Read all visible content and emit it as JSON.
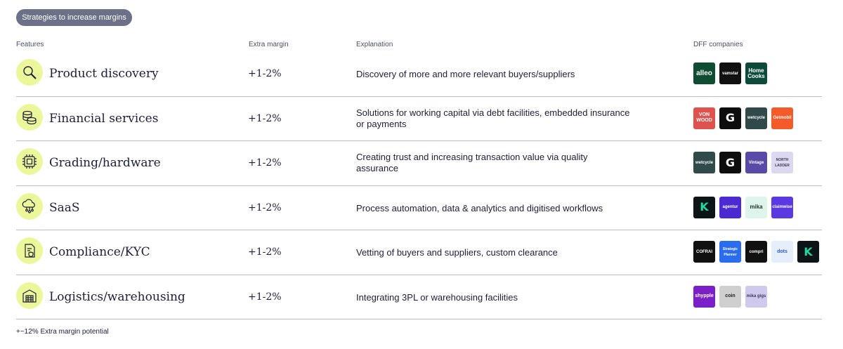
{
  "pill": "Strategies to increase margins",
  "headers": {
    "features": "Features",
    "extra_margin": "Extra margin",
    "explanation": "Explanation",
    "companies": "DFF companies"
  },
  "rows": [
    {
      "feature": "Product discovery",
      "margin": "+1-2%",
      "explanation": "Discovery of more and more relevant buyers/suppliers",
      "icon": "magnifier-icon",
      "logos": [
        {
          "text": "alleo",
          "bg": "#0f4d33",
          "fg": "#ffffff"
        },
        {
          "text": "vamstar",
          "bg": "#111111",
          "fg": "#ffffff"
        },
        {
          "text": "Home Cooks",
          "bg": "#0c4a3a",
          "fg": "#ffffff"
        }
      ]
    },
    {
      "feature": "Financial services",
      "margin": "+1-2%",
      "explanation": "Solutions for working capital via debt facilities, embedded insurance or payments",
      "icon": "coins-icon",
      "logos": [
        {
          "text": "VON WOOD",
          "bg": "#e0524d",
          "fg": "#ffffff"
        },
        {
          "text": "G",
          "bg": "#0d0d0d",
          "fg": "#ffffff"
        },
        {
          "text": "wetcycle",
          "bg": "#2f4a48",
          "fg": "#ffffff"
        },
        {
          "text": "Getmobil",
          "bg": "#f45a2a",
          "fg": "#ffffff"
        }
      ]
    },
    {
      "feature": "Grading/hardware",
      "margin": "+1-2%",
      "explanation": "Creating trust and increasing transaction value via quality assurance",
      "icon": "chip-icon",
      "logos": [
        {
          "text": "wetcycle",
          "bg": "#2f4a48",
          "fg": "#ffffff"
        },
        {
          "text": "G",
          "bg": "#0d0d0d",
          "fg": "#ffffff"
        },
        {
          "text": "Vintage",
          "bg": "#5a4aa8",
          "fg": "#ffffff"
        },
        {
          "text": "NORTH LADDER",
          "bg": "#dcd8f2",
          "fg": "#3a3a5a"
        }
      ]
    },
    {
      "feature": "SaaS",
      "margin": "+1-2%",
      "explanation": "Process automation, data & analytics and digitised workflows",
      "icon": "cloud-icon",
      "logos": [
        {
          "text": "K",
          "bg": "#0d1418",
          "fg": "#22d6a0"
        },
        {
          "text": "agentur",
          "bg": "#4b2ad1",
          "fg": "#ffffff"
        },
        {
          "text": "mika",
          "bg": "#dff5ec",
          "fg": "#1d3a30"
        },
        {
          "text": "claimwise",
          "bg": "#5a3ae0",
          "fg": "#ffffff"
        }
      ]
    },
    {
      "feature": "Compliance/KYC",
      "margin": "+1-2%",
      "explanation": "Vetting of buyers and suppliers, custom clearance",
      "icon": "shield-document-icon",
      "logos": [
        {
          "text": "COFRAI",
          "bg": "#111111",
          "fg": "#ffffff"
        },
        {
          "text": "Strategic Planner",
          "bg": "#2a6cf0",
          "fg": "#ffffff"
        },
        {
          "text": "compri",
          "bg": "#111111",
          "fg": "#ffffff"
        },
        {
          "text": "dots",
          "bg": "#e6eefc",
          "fg": "#2a5ad8"
        },
        {
          "text": "K",
          "bg": "#0d1418",
          "fg": "#22d6a0"
        }
      ]
    },
    {
      "feature": "Logistics/warehousing",
      "margin": "+1-2%",
      "explanation": "Integrating 3PL or warehousing facilities",
      "icon": "warehouse-icon",
      "logos": [
        {
          "text": "shypple",
          "bg": "#7b1fc9",
          "fg": "#ffffff"
        },
        {
          "text": "coin",
          "bg": "#cfcfcf",
          "fg": "#222222"
        },
        {
          "text": "mika gigs",
          "bg": "#cfc9ee",
          "fg": "#3a3a5a"
        }
      ]
    }
  ],
  "footer": "+~12% Extra margin potential"
}
